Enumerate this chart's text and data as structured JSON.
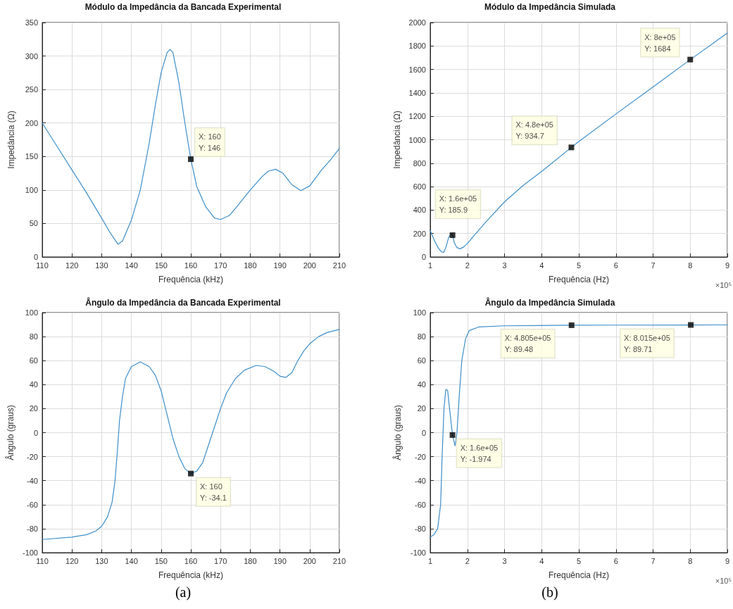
{
  "chart_data": [
    {
      "type": "line",
      "title": "Módulo da Impedância da Bancada Experimental",
      "xlabel": "Frequência (kHz)",
      "ylabel": "Impedância (Ω)",
      "color": "#3d8ec9",
      "marker": "none",
      "line_style": "solid",
      "grid": true,
      "x": [
        110,
        115,
        120,
        125,
        130,
        133,
        135.5,
        137,
        140,
        143,
        146,
        148,
        150,
        152,
        153,
        154,
        156,
        158,
        160,
        162,
        165,
        168,
        170,
        173,
        176,
        180,
        184,
        186,
        188.5,
        191,
        194,
        197,
        200,
        204,
        207,
        210
      ],
      "values": [
        200,
        165,
        130,
        95,
        58,
        35,
        19,
        24,
        55,
        100,
        170,
        225,
        275,
        305,
        310,
        305,
        260,
        200,
        146,
        105,
        75,
        58,
        56,
        62,
        78,
        100,
        120,
        128,
        131,
        125,
        108,
        99,
        106,
        130,
        145,
        162
      ],
      "xlim": [
        110,
        210
      ],
      "xticks": [
        110,
        120,
        130,
        140,
        150,
        160,
        170,
        180,
        190,
        200,
        210
      ],
      "ylim": [
        0,
        350
      ],
      "yticks": [
        0,
        50,
        100,
        150,
        200,
        250,
        300,
        350
      ],
      "annotations": [
        {
          "text": "X: 160\nY: 146",
          "x": 160,
          "y": 146
        }
      ]
    },
    {
      "type": "line",
      "title": "Módulo da Impedância Simulada",
      "xlabel": "Frequência (Hz)",
      "ylabel": "Impedância (Ω)",
      "color": "#3d8ec9",
      "marker": "none",
      "line_style": "solid",
      "grid": true,
      "x": [
        1,
        1.1,
        1.2,
        1.3,
        1.36,
        1.42,
        1.5,
        1.57,
        1.6,
        1.65,
        1.72,
        1.8,
        1.9,
        2,
        2.2,
        2.5,
        3,
        3.5,
        4,
        4.8,
        5,
        6,
        7,
        8,
        9
      ],
      "values": [
        225,
        150,
        85,
        45,
        38,
        80,
        170,
        195,
        185.9,
        120,
        80,
        70,
        85,
        115,
        190,
        300,
        470,
        610,
        730,
        934.7,
        985,
        1220,
        1450,
        1684,
        1910
      ],
      "xlim": [
        1,
        9
      ],
      "xticks": [
        1,
        2,
        3,
        4,
        5,
        6,
        7,
        8,
        9
      ],
      "ylim": [
        0,
        2000
      ],
      "yticks": [
        0,
        200,
        400,
        600,
        800,
        1000,
        1200,
        1400,
        1600,
        1800,
        2000
      ],
      "annotations": [
        {
          "text": "X: 1.6e+05\nY: 185.9",
          "x": 1.6,
          "y": 185.9
        },
        {
          "text": "X: 4.8e+05\nY: 934.7",
          "x": 4.8,
          "y": 934.7
        },
        {
          "text": "X: 8e+05\nY: 1684",
          "x": 8,
          "y": 1684
        },
        "×10⁵"
      ]
    },
    {
      "type": "line",
      "title": "Ângulo da Impedância da Bancada Experimental",
      "xlabel": "Frequência (kHz)",
      "ylabel": "Ângulo (graus)",
      "color": "#3d8ec9",
      "marker": "none",
      "line_style": "solid",
      "grid": true,
      "x": [
        110,
        120,
        125,
        128,
        130,
        132,
        133.5,
        134.5,
        135.3,
        136,
        137,
        138,
        140,
        143,
        146,
        148,
        150,
        152,
        154,
        156,
        158,
        160,
        162,
        164,
        166,
        168,
        170,
        172,
        175,
        178,
        182,
        185,
        188,
        190,
        192,
        194,
        196,
        198,
        200,
        203,
        206,
        210
      ],
      "values": [
        -89,
        -87,
        -85,
        -82,
        -78,
        -70,
        -58,
        -40,
        -15,
        10,
        30,
        45,
        55,
        59,
        55,
        48,
        35,
        15,
        -5,
        -20,
        -30,
        -34.1,
        -32,
        -25,
        -10,
        5,
        20,
        33,
        45,
        52,
        56,
        55,
        51,
        47,
        46,
        50,
        60,
        68,
        74,
        80,
        83.5,
        86
      ],
      "xlim": [
        110,
        210
      ],
      "xticks": [
        110,
        120,
        130,
        140,
        150,
        160,
        170,
        180,
        190,
        200,
        210
      ],
      "ylim": [
        -100,
        100
      ],
      "yticks": [
        -100,
        -80,
        -60,
        -40,
        -20,
        0,
        20,
        40,
        60,
        80,
        100
      ],
      "annotations": [
        {
          "text": "X: 160\nY: -34.1",
          "x": 160,
          "y": -34.1
        },
        "(a)"
      ]
    },
    {
      "type": "line",
      "title": "Ângulo da Impedância Simulada",
      "xlabel": "Frequência (Hz)",
      "ylabel": "Ângulo (graus)",
      "color": "#3d8ec9",
      "marker": "none",
      "line_style": "solid",
      "grid": true,
      "x": [
        1,
        1.1,
        1.2,
        1.28,
        1.32,
        1.37,
        1.42,
        1.47,
        1.52,
        1.6,
        1.67,
        1.72,
        1.78,
        1.85,
        1.95,
        2.05,
        2.3,
        3,
        4.805,
        6,
        8.015,
        9
      ],
      "values": [
        -87,
        -85,
        -80,
        -60,
        -20,
        20,
        36,
        35,
        20,
        -1.974,
        -11,
        0,
        30,
        60,
        78,
        85,
        88,
        89,
        89.48,
        89.6,
        89.71,
        89.75
      ],
      "xlim": [
        1,
        9
      ],
      "xticks": [
        1,
        2,
        3,
        4,
        5,
        6,
        7,
        8,
        9
      ],
      "ylim": [
        -100,
        100
      ],
      "yticks": [
        -100,
        -80,
        -60,
        -40,
        -20,
        0,
        20,
        40,
        60,
        80,
        100
      ],
      "annotations": [
        {
          "text": "X: 1.6e+05\nY: -1.974",
          "x": 1.6,
          "y": -1.974
        },
        {
          "text": "X: 4.805e+05\nY: 89.48",
          "x": 4.805,
          "y": 89.48
        },
        {
          "text": "X: 8.015e+05\nY: 89.71",
          "x": 8.015,
          "y": 89.71
        },
        "×10⁵",
        "(b)"
      ]
    }
  ]
}
